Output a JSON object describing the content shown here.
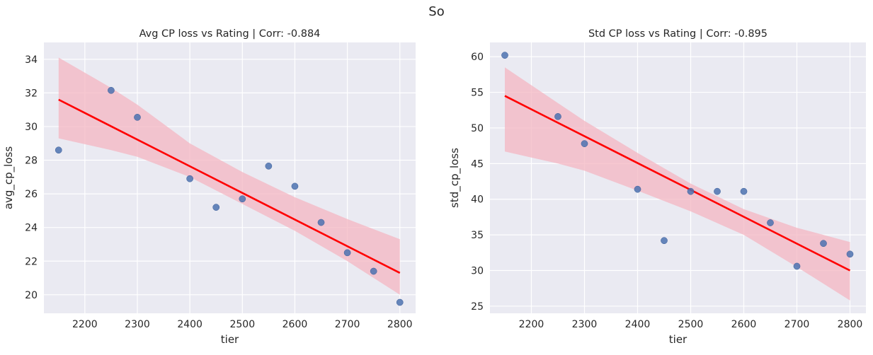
{
  "figure": {
    "suptitle": "So"
  },
  "chart_data": [
    {
      "type": "scatter",
      "title": "Avg CP loss vs Rating | Corr: -0.884",
      "xlabel": "tier",
      "ylabel": "avg_cp_loss",
      "xlim": [
        2122,
        2830
      ],
      "ylim": [
        18.9,
        35.0
      ],
      "xticks": [
        2200,
        2300,
        2400,
        2500,
        2600,
        2700,
        2800
      ],
      "yticks": [
        20,
        22,
        24,
        26,
        28,
        30,
        32,
        34
      ],
      "grid": true,
      "points": [
        {
          "x": 2150,
          "y": 28.6
        },
        {
          "x": 2250,
          "y": 32.15
        },
        {
          "x": 2300,
          "y": 30.55
        },
        {
          "x": 2400,
          "y": 26.9
        },
        {
          "x": 2450,
          "y": 25.2
        },
        {
          "x": 2500,
          "y": 25.7
        },
        {
          "x": 2550,
          "y": 27.65
        },
        {
          "x": 2600,
          "y": 26.45
        },
        {
          "x": 2650,
          "y": 24.3
        },
        {
          "x": 2700,
          "y": 22.5
        },
        {
          "x": 2750,
          "y": 21.4
        },
        {
          "x": 2800,
          "y": 19.55
        }
      ],
      "regression_line": {
        "x": [
          2150,
          2800
        ],
        "y": [
          31.6,
          21.3
        ]
      },
      "confidence_band": {
        "x": [
          2150,
          2250,
          2300,
          2400,
          2500,
          2600,
          2700,
          2800
        ],
        "lower": [
          29.3,
          28.6,
          28.2,
          27.0,
          25.4,
          23.8,
          22.0,
          20.0
        ],
        "upper": [
          34.1,
          32.3,
          31.3,
          29.0,
          27.3,
          25.8,
          24.5,
          23.3
        ]
      },
      "point_color": "#4c72b0",
      "line_color": "#ff0000",
      "band_color": "#f4b6c2"
    },
    {
      "type": "scatter",
      "title": "Std CP loss vs Rating | Corr: -0.895",
      "xlabel": "tier",
      "ylabel": "std_cp_loss",
      "xlim": [
        2122,
        2830
      ],
      "ylim": [
        24.0,
        62.0
      ],
      "xticks": [
        2200,
        2300,
        2400,
        2500,
        2600,
        2700,
        2800
      ],
      "yticks": [
        25,
        30,
        35,
        40,
        45,
        50,
        55,
        60
      ],
      "grid": true,
      "points": [
        {
          "x": 2150,
          "y": 60.2
        },
        {
          "x": 2250,
          "y": 51.6
        },
        {
          "x": 2300,
          "y": 47.8
        },
        {
          "x": 2400,
          "y": 41.4
        },
        {
          "x": 2450,
          "y": 34.2
        },
        {
          "x": 2500,
          "y": 41.1
        },
        {
          "x": 2550,
          "y": 41.1
        },
        {
          "x": 2600,
          "y": 41.1
        },
        {
          "x": 2650,
          "y": 36.7
        },
        {
          "x": 2700,
          "y": 30.6
        },
        {
          "x": 2750,
          "y": 33.8
        },
        {
          "x": 2800,
          "y": 32.3
        }
      ],
      "regression_line": {
        "x": [
          2150,
          2800
        ],
        "y": [
          54.5,
          30.0
        ]
      },
      "confidence_band": {
        "x": [
          2150,
          2250,
          2300,
          2400,
          2500,
          2600,
          2700,
          2800
        ],
        "lower": [
          46.7,
          45.0,
          44.0,
          41.2,
          38.3,
          35.0,
          30.5,
          25.8
        ],
        "upper": [
          58.5,
          53.5,
          51.0,
          46.5,
          42.2,
          38.6,
          36.0,
          34.0
        ]
      },
      "point_color": "#4c72b0",
      "line_color": "#ff0000",
      "band_color": "#f4b6c2"
    }
  ]
}
